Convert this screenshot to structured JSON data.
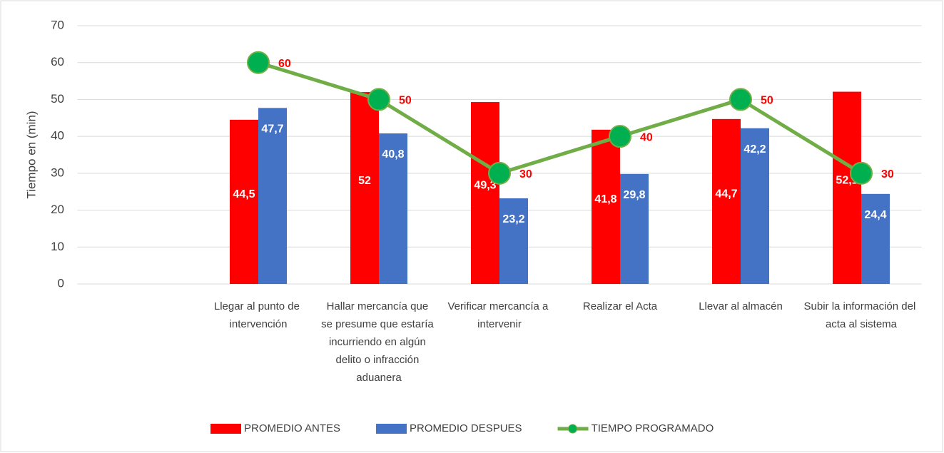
{
  "chart_data": {
    "type": "bar",
    "y_label": "Tiempo en (min)",
    "categories": [
      null,
      "Llegar al punto de intervención",
      "Hallar mercancía que se presume que estaría incurriendo en algún delito o infracción aduanera",
      "Verificar mercancía a intervenir",
      "Realizar el Acta",
      "Llevar al almacén",
      "Subir la información del acta al sistema"
    ],
    "series": [
      {
        "name": "PROMEDIO ANTES",
        "type": "bar",
        "color": "#ff0000",
        "label_color": "#ffffff",
        "values": [
          null,
          44.5,
          52,
          49.3,
          41.8,
          44.7,
          52.1
        ],
        "value_labels": [
          null,
          "44,5",
          "52",
          "49,3",
          "41,8",
          "44,7",
          "52,1"
        ]
      },
      {
        "name": "PROMEDIO DESPUES",
        "type": "bar",
        "color": "#4472c4",
        "label_color": "#ffffff",
        "values": [
          null,
          47.7,
          40.8,
          23.2,
          29.8,
          42.2,
          24.4
        ],
        "value_labels": [
          null,
          "47,7",
          "40,8",
          "23,2",
          "29,8",
          "42,2",
          "24,4"
        ]
      },
      {
        "name": "TIEMPO PROGRAMADO",
        "type": "line",
        "color": "#70ad47",
        "marker_color": "#00b050",
        "label_color": "#ff0000",
        "values": [
          null,
          60,
          50,
          30,
          40,
          50,
          30
        ]
      }
    ],
    "ylim": [
      0,
      70
    ],
    "yticks": [
      0,
      10,
      20,
      30,
      40,
      50,
      60,
      70
    ],
    "grid": true,
    "legend": "bottom"
  }
}
